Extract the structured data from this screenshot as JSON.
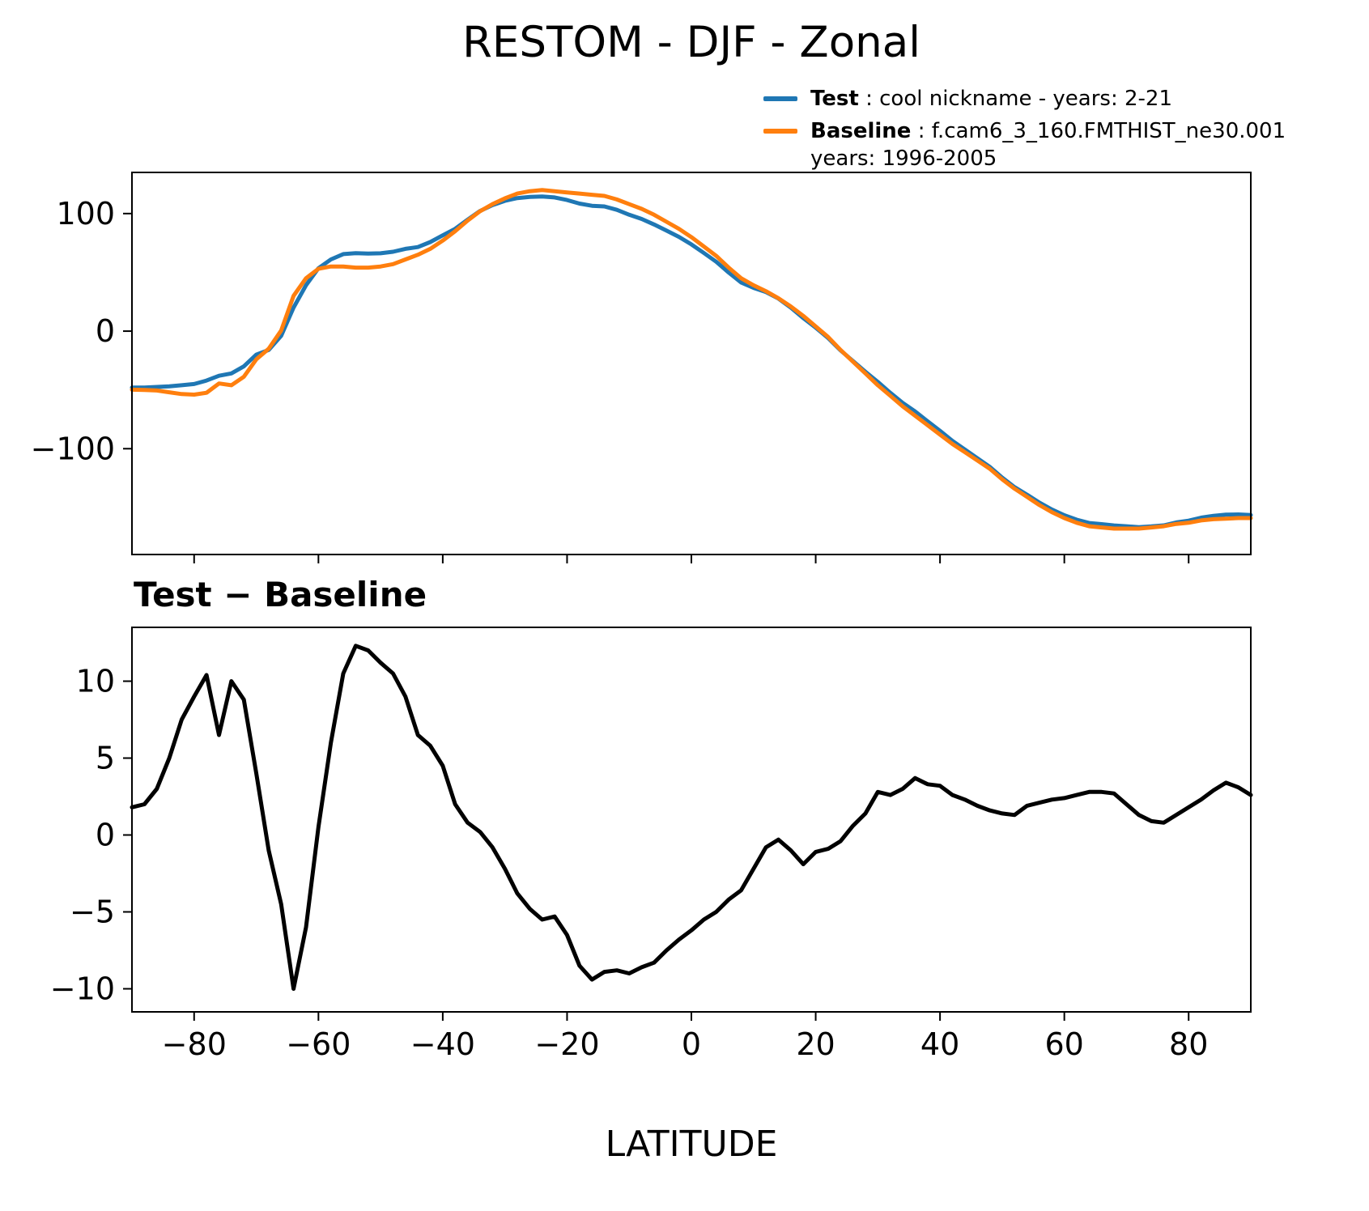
{
  "figure": {
    "title": "RESTOM - DJF - Zonal",
    "subtitle": "Test − Baseline",
    "xlabel": "LATITUDE"
  },
  "legend": {
    "entries": [
      {
        "id": "test",
        "color": "#1f77b4",
        "bold": "Test",
        "rest": " : cool nickname - years: 2-21",
        "line2": ""
      },
      {
        "id": "baseline",
        "color": "#ff7f0e",
        "bold": "Baseline",
        "rest": " : f.cam6_3_160.FMTHIST_ne30.001",
        "line2": "years: 1996-2005"
      }
    ]
  },
  "chart_data": [
    {
      "type": "line",
      "title": "RESTOM - DJF - Zonal",
      "xlabel": "",
      "ylabel": "",
      "grid": false,
      "legend_position": "upper right outside",
      "xlim": [
        -90,
        90
      ],
      "ylim": [
        -190,
        135
      ],
      "yticks": [
        100,
        0,
        -100
      ],
      "xticks": [
        -80,
        -60,
        -40,
        -20,
        0,
        20,
        40,
        60,
        80
      ],
      "xticklabels_visible": false,
      "x": [
        -90,
        -88,
        -86,
        -84,
        -82,
        -80,
        -78,
        -76,
        -74,
        -72,
        -70,
        -68,
        -66,
        -64,
        -62,
        -60,
        -58,
        -56,
        -54,
        -52,
        -50,
        -48,
        -46,
        -44,
        -42,
        -40,
        -38,
        -36,
        -34,
        -32,
        -30,
        -28,
        -26,
        -24,
        -22,
        -20,
        -18,
        -16,
        -14,
        -12,
        -10,
        -8,
        -6,
        -4,
        -2,
        0,
        2,
        4,
        6,
        8,
        10,
        12,
        14,
        16,
        18,
        20,
        22,
        24,
        26,
        28,
        30,
        32,
        34,
        36,
        38,
        40,
        42,
        44,
        46,
        48,
        50,
        52,
        54,
        56,
        58,
        60,
        62,
        64,
        66,
        68,
        70,
        72,
        74,
        76,
        78,
        80,
        82,
        84,
        86,
        88,
        90
      ],
      "series": [
        {
          "id": "test-line",
          "name": "Test",
          "label": "Test : cool nickname - years: 2-21",
          "color": "#1f77b4",
          "values": [
            -48,
            -48,
            -47.5,
            -47,
            -46,
            -45,
            -42,
            -38,
            -36,
            -30,
            -20,
            -16,
            -4,
            20,
            39,
            53.5,
            61,
            65.5,
            66.3,
            66,
            66.2,
            67.5,
            70,
            71.5,
            75.8,
            81.5,
            87,
            94.8,
            102.2,
            107.2,
            110.8,
            113.2,
            114.2,
            114.5,
            113.7,
            111.5,
            108.5,
            106.6,
            106.1,
            103.2,
            99,
            95.4,
            90.7,
            85.5,
            80.2,
            73.8,
            66.5,
            59,
            49.8,
            41.4,
            36.8,
            33.2,
            27.7,
            20,
            11.1,
            2.9,
            -5.9,
            -16.4,
            -25.4,
            -34.6,
            -43.2,
            -52.4,
            -61,
            -68.3,
            -76.7,
            -84.8,
            -93.4,
            -100.7,
            -108.1,
            -115.4,
            -124.6,
            -132.7,
            -139.1,
            -145.9,
            -151.7,
            -156.6,
            -160.4,
            -163.2,
            -164.2,
            -165.3,
            -166,
            -166.7,
            -166.1,
            -165.2,
            -162.7,
            -161.2,
            -158.7,
            -157.1,
            -156.1,
            -155.9,
            -156.4
          ]
        },
        {
          "id": "baseline-line",
          "name": "Baseline",
          "label": "Baseline : f.cam6_3_160.FMTHIST_ne30.001 years: 1996-2005",
          "color": "#ff7f0e",
          "values": [
            -49.8,
            -50,
            -50.5,
            -52,
            -53.5,
            -54,
            -52.4,
            -44.5,
            -46,
            -38.8,
            -24,
            -15,
            0.5,
            30,
            45,
            53,
            55,
            55,
            54,
            54,
            55,
            57,
            61,
            65,
            70,
            77,
            85,
            94,
            102,
            108,
            113,
            117,
            119,
            120,
            119,
            118,
            117,
            116,
            115,
            112,
            108,
            104,
            99,
            93,
            87,
            80,
            72,
            64,
            54,
            45,
            39,
            34,
            28,
            21,
            13,
            4,
            -5,
            -16,
            -26,
            -36,
            -46,
            -55,
            -64,
            -72,
            -80,
            -88,
            -96,
            -103,
            -110,
            -117,
            -126,
            -134,
            -141,
            -148,
            -154,
            -159,
            -163,
            -166,
            -167,
            -168,
            -168,
            -168,
            -167,
            -166,
            -164,
            -163,
            -161,
            -160,
            -159.5,
            -159,
            -159
          ]
        }
      ]
    },
    {
      "type": "line",
      "title": "Test − Baseline",
      "xlabel": "LATITUDE",
      "ylabel": "",
      "grid": false,
      "xlim": [
        -90,
        90
      ],
      "ylim": [
        -11.5,
        13.5
      ],
      "yticks": [
        10,
        5,
        0,
        -5,
        -10
      ],
      "xticks": [
        -80,
        -60,
        -40,
        -20,
        0,
        20,
        40,
        60,
        80
      ],
      "xticklabels_visible": true,
      "x": [
        -90,
        -88,
        -86,
        -84,
        -82,
        -80,
        -78,
        -76,
        -74,
        -72,
        -70,
        -68,
        -66,
        -64,
        -62,
        -60,
        -58,
        -56,
        -54,
        -52,
        -50,
        -48,
        -46,
        -44,
        -42,
        -40,
        -38,
        -36,
        -34,
        -32,
        -30,
        -28,
        -26,
        -24,
        -22,
        -20,
        -18,
        -16,
        -14,
        -12,
        -10,
        -8,
        -6,
        -4,
        -2,
        0,
        2,
        4,
        6,
        8,
        10,
        12,
        14,
        16,
        18,
        20,
        22,
        24,
        26,
        28,
        30,
        32,
        34,
        36,
        38,
        40,
        42,
        44,
        46,
        48,
        50,
        52,
        54,
        56,
        58,
        60,
        62,
        64,
        66,
        68,
        70,
        72,
        74,
        76,
        78,
        80,
        82,
        84,
        86,
        88,
        90
      ],
      "series": [
        {
          "id": "diff-line",
          "name": "Test - Baseline",
          "color": "#000000",
          "values": [
            1.8,
            2,
            3,
            5,
            7.5,
            9,
            10.4,
            6.5,
            10,
            8.8,
            4,
            -1,
            -4.5,
            -10,
            -6,
            0.5,
            6,
            10.5,
            12.3,
            12,
            11.2,
            10.5,
            9,
            6.5,
            5.8,
            4.5,
            2,
            0.8,
            0.2,
            -0.8,
            -2.2,
            -3.8,
            -4.8,
            -5.5,
            -5.3,
            -6.5,
            -8.5,
            -9.4,
            -8.9,
            -8.8,
            -9,
            -8.6,
            -8.3,
            -7.5,
            -6.8,
            -6.2,
            -5.5,
            -5,
            -4.2,
            -3.6,
            -2.2,
            -0.8,
            -0.3,
            -1,
            -1.9,
            -1.1,
            -0.9,
            -0.4,
            0.6,
            1.4,
            2.8,
            2.6,
            3,
            3.7,
            3.3,
            3.2,
            2.6,
            2.3,
            1.9,
            1.6,
            1.4,
            1.3,
            1.9,
            2.1,
            2.3,
            2.4,
            2.6,
            2.8,
            2.8,
            2.7,
            2,
            1.3,
            0.9,
            0.8,
            1.3,
            1.8,
            2.3,
            2.9,
            3.4,
            3.1,
            2.6
          ]
        }
      ]
    }
  ]
}
